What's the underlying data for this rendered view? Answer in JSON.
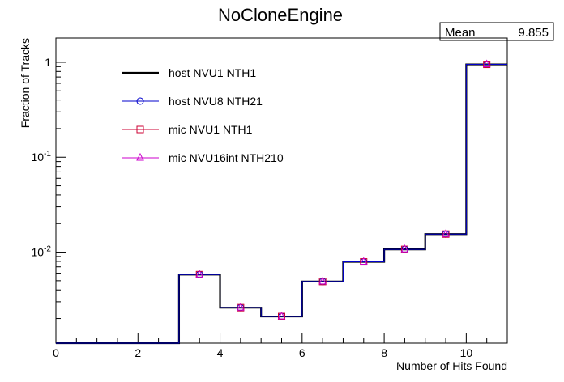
{
  "chart_data": {
    "type": "line",
    "title": "NoCloneEngine",
    "xlabel": "Number of Hits Found",
    "ylabel": "Fraction of Tracks",
    "xlim": [
      0,
      11
    ],
    "ylim": [
      0.0011,
      1.8
    ],
    "yscale": "log",
    "x_ticks": [
      0,
      2,
      4,
      6,
      8,
      10
    ],
    "y_ticks": [
      {
        "value": 0.01,
        "base": "10",
        "exp": "-2"
      },
      {
        "value": 0.1,
        "base": "10",
        "exp": "-1"
      },
      {
        "value": 1,
        "base": "1",
        "exp": ""
      }
    ],
    "stats": {
      "label": "Mean",
      "value": "9.855"
    },
    "legend_position": "upper-left",
    "bin_edges": [
      0,
      1,
      2,
      3,
      4,
      5,
      6,
      7,
      8,
      9,
      10,
      11
    ],
    "series": [
      {
        "name": "host NVU1 NTH1",
        "style": "step",
        "marker": "none",
        "color": "#000000",
        "values": [
          0,
          0,
          0,
          0.0058,
          0.0026,
          0.0021,
          0.0049,
          0.0079,
          0.0107,
          0.0155,
          0.95
        ]
      },
      {
        "name": "host NVU8 NTH21",
        "style": "step-markers",
        "marker": "circle",
        "color": "#0000cc",
        "values": [
          0,
          0,
          0,
          0.0058,
          0.0026,
          0.0021,
          0.0049,
          0.0079,
          0.0107,
          0.0155,
          0.95
        ]
      },
      {
        "name": "mic NVU1 NTH1",
        "style": "markers",
        "marker": "square",
        "color": "#cc0033",
        "values": [
          0,
          0,
          0,
          0.0058,
          0.0026,
          0.0021,
          0.0049,
          0.0079,
          0.0107,
          0.0155,
          0.95
        ]
      },
      {
        "name": "mic NVU16int NTH210",
        "style": "markers",
        "marker": "triangle",
        "color": "#cc00cc",
        "values": [
          0,
          0,
          0,
          0.0058,
          0.0026,
          0.0021,
          0.0049,
          0.0079,
          0.0107,
          0.0155,
          0.95
        ]
      }
    ]
  }
}
